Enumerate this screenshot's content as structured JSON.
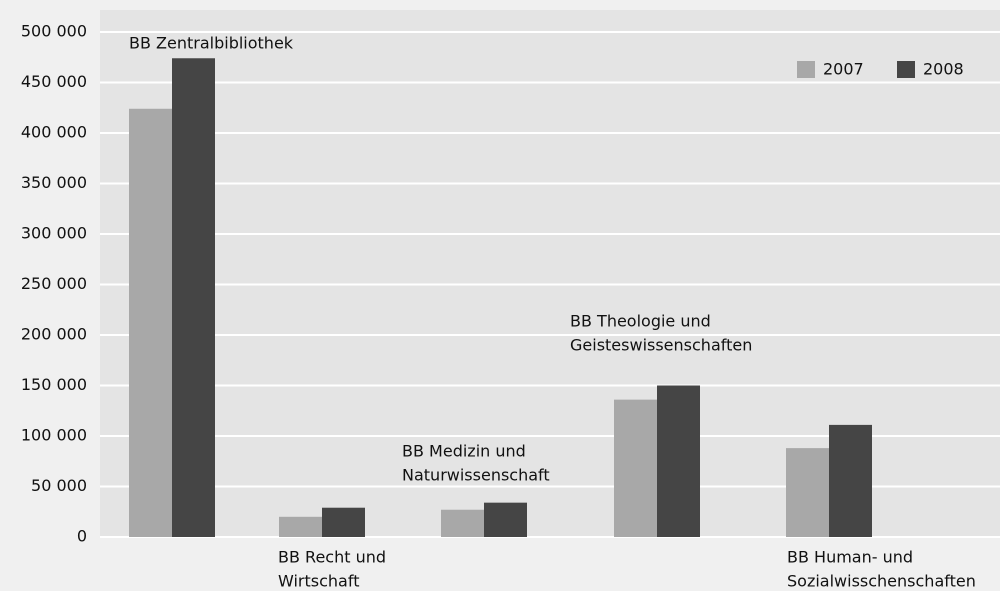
{
  "chart_data": {
    "type": "bar",
    "categories": [
      [
        "BB Zentralbibliothek"
      ],
      [
        "BB Recht und",
        "Wirtschaft"
      ],
      [
        "BB Medizin und",
        "Naturwissenschaft"
      ],
      [
        "BB Theologie und",
        "Geisteswissenschaften"
      ],
      [
        "BB Human- und",
        "Sozialwisschenschaften"
      ]
    ],
    "series": [
      {
        "name": "2007",
        "color": "#a8a8a8",
        "values": [
          424000,
          20000,
          27000,
          136000,
          88000
        ]
      },
      {
        "name": "2008",
        "color": "#454545",
        "values": [
          474000,
          29000,
          34000,
          150000,
          111000
        ]
      }
    ],
    "ylim": [
      0,
      500000
    ],
    "yticks": [
      {
        "value": 0,
        "label": "0"
      },
      {
        "value": 50000,
        "label": "50 000"
      },
      {
        "value": 100000,
        "label": "100 000"
      },
      {
        "value": 150000,
        "label": "150 000"
      },
      {
        "value": 200000,
        "label": "200 000"
      },
      {
        "value": 250000,
        "label": "250 000"
      },
      {
        "value": 300000,
        "label": "300 000"
      },
      {
        "value": 350000,
        "label": "350 000"
      },
      {
        "value": 400000,
        "label": "400 000"
      },
      {
        "value": 450000,
        "label": "450 000"
      },
      {
        "value": 500000,
        "label": "500 000"
      }
    ],
    "grid": true,
    "legend": "top-right"
  }
}
